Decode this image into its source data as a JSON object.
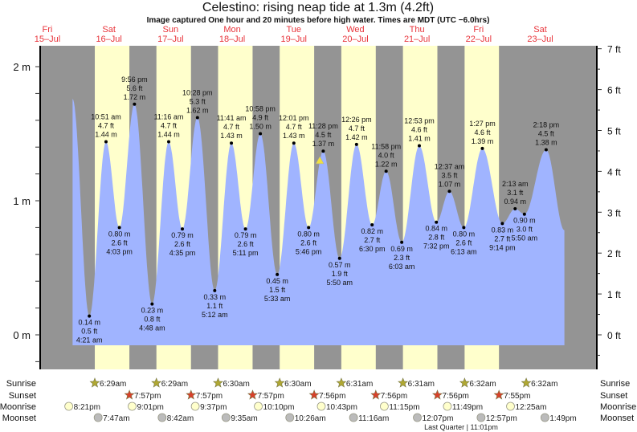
{
  "title": "Celestino: rising  neap tide at 1.3m (4.2ft)",
  "subtitle": "Image captured One hour and 20 minutes before high water. Times are MDT (UTC −6.0hrs)",
  "colors": {
    "night": "#949494",
    "day": "#ffffcc",
    "water": "#a0b4ff",
    "day_label": "#e8333a",
    "sunrise": "#b0a832",
    "sunset": "#d8402a",
    "moonrise": "#ffffcc",
    "moonset": "#bbbbbb",
    "marker": "#f0e040"
  },
  "chart_data": {
    "type": "area",
    "title": "Celestino: rising  neap tide at 1.3m (4.2ft)",
    "left_axis": {
      "unit": "m",
      "ticks": [
        "0 m",
        "1 m",
        "2 m"
      ],
      "range": [
        -0.08,
        2.2
      ]
    },
    "right_axis": {
      "unit": "ft",
      "ticks": [
        "0 ft",
        "1 ft",
        "2 ft",
        "3 ft",
        "4 ft",
        "5 ft",
        "6 ft",
        "7 ft"
      ]
    },
    "days": [
      {
        "dow": "Fri",
        "date": "15–Jul"
      },
      {
        "dow": "Sat",
        "date": "16–Jul"
      },
      {
        "dow": "Sun",
        "date": "17–Jul"
      },
      {
        "dow": "Mon",
        "date": "18–Jul"
      },
      {
        "dow": "Tue",
        "date": "19–Jul"
      },
      {
        "dow": "Wed",
        "date": "20–Jul"
      },
      {
        "dow": "Thu",
        "date": "21–Jul"
      },
      {
        "dow": "Fri",
        "date": "22–Jul"
      },
      {
        "dow": "Sat",
        "date": "23–Jul"
      }
    ],
    "curve_start": {
      "day": 0,
      "time": "9:50 pm",
      "m": 1.76
    },
    "curve_end": {
      "day": 8,
      "time": "9:25 pm",
      "m": 0.78
    },
    "extremes": [
      {
        "day": 1,
        "type": "low",
        "time": "4:21 am",
        "m": "0.14 m",
        "ft": "0.5 ft",
        "value": 0.14
      },
      {
        "day": 1,
        "type": "high",
        "time": "10:51 am",
        "m": "1.44 m",
        "ft": "4.7 ft",
        "value": 1.44
      },
      {
        "day": 1,
        "type": "low",
        "time": "4:03 pm",
        "m": "0.80 m",
        "ft": "2.6 ft",
        "value": 0.8
      },
      {
        "day": 1,
        "type": "high",
        "time": "9:56 pm",
        "m": "1.72 m",
        "ft": "5.6 ft",
        "value": 1.72
      },
      {
        "day": 2,
        "type": "low",
        "time": "4:48 am",
        "m": "0.23 m",
        "ft": "0.8 ft",
        "value": 0.23
      },
      {
        "day": 2,
        "type": "high",
        "time": "11:16 am",
        "m": "1.44 m",
        "ft": "4.7 ft",
        "value": 1.44
      },
      {
        "day": 2,
        "type": "low",
        "time": "4:35 pm",
        "m": "0.79 m",
        "ft": "2.6 ft",
        "value": 0.79
      },
      {
        "day": 2,
        "type": "high",
        "time": "10:28 pm",
        "m": "1.62 m",
        "ft": "5.3 ft",
        "value": 1.62
      },
      {
        "day": 3,
        "type": "low",
        "time": "5:12 am",
        "m": "0.33 m",
        "ft": "1.1 ft",
        "value": 0.33
      },
      {
        "day": 3,
        "type": "high",
        "time": "11:41 am",
        "m": "1.43 m",
        "ft": "4.7 ft",
        "value": 1.43
      },
      {
        "day": 3,
        "type": "low",
        "time": "5:11 pm",
        "m": "0.79 m",
        "ft": "2.6 ft",
        "value": 0.79
      },
      {
        "day": 3,
        "type": "high",
        "time": "10:58 pm",
        "m": "1.50 m",
        "ft": "4.9 ft",
        "value": 1.5
      },
      {
        "day": 4,
        "type": "low",
        "time": "5:33 am",
        "m": "0.45 m",
        "ft": "1.5 ft",
        "value": 0.45
      },
      {
        "day": 4,
        "type": "high",
        "time": "12:01 pm",
        "m": "1.43 m",
        "ft": "4.7 ft",
        "value": 1.43
      },
      {
        "day": 4,
        "type": "low",
        "time": "5:46 pm",
        "m": "0.80 m",
        "ft": "2.6 ft",
        "value": 0.8
      },
      {
        "day": 4,
        "type": "high",
        "time": "11:28 pm",
        "m": "1.37 m",
        "ft": "4.5 ft",
        "value": 1.37
      },
      {
        "day": 5,
        "type": "low",
        "time": "5:50 am",
        "m": "0.57 m",
        "ft": "1.9 ft",
        "value": 0.57
      },
      {
        "day": 5,
        "type": "high",
        "time": "12:26 pm",
        "m": "1.42 m",
        "ft": "4.7 ft",
        "value": 1.42
      },
      {
        "day": 5,
        "type": "low",
        "time": "6:30 pm",
        "m": "0.82 m",
        "ft": "2.7 ft",
        "value": 0.82
      },
      {
        "day": 5,
        "type": "high",
        "time": "11:58 pm",
        "m": "1.22 m",
        "ft": "4.0 ft",
        "value": 1.22
      },
      {
        "day": 6,
        "type": "low",
        "time": "6:03 am",
        "m": "0.69 m",
        "ft": "2.3 ft",
        "value": 0.69
      },
      {
        "day": 6,
        "type": "high",
        "time": "12:53 pm",
        "m": "1.41 m",
        "ft": "4.6 ft",
        "value": 1.41
      },
      {
        "day": 6,
        "type": "low",
        "time": "7:32 pm",
        "m": "0.84 m",
        "ft": "2.8 ft",
        "value": 0.84
      },
      {
        "day": 7,
        "type": "high",
        "time": "12:37 am",
        "m": "1.07 m",
        "ft": "3.5 ft",
        "value": 1.07
      },
      {
        "day": 7,
        "type": "low",
        "time": "6:13 am",
        "m": "0.80 m",
        "ft": "2.6 ft",
        "value": 0.8
      },
      {
        "day": 7,
        "type": "high",
        "time": "1:27 pm",
        "m": "1.39 m",
        "ft": "4.6 ft",
        "value": 1.39
      },
      {
        "day": 7,
        "type": "low",
        "time": "9:14 pm",
        "m": "0.83 m",
        "ft": "2.7 ft",
        "value": 0.83
      },
      {
        "day": 8,
        "type": "high",
        "time": "2:13 am",
        "m": "0.94 m",
        "ft": "3.1 ft",
        "value": 0.94
      },
      {
        "day": 8,
        "type": "low",
        "time": "5:50 am",
        "m": "0.90 m",
        "ft": "3.0 ft",
        "value": 0.9
      },
      {
        "day": 8,
        "type": "high",
        "time": "2:18 pm",
        "m": "1.38 m",
        "ft": "4.5 ft",
        "value": 1.38
      }
    ],
    "current": {
      "day": 4,
      "time": "10:08 pm",
      "m": 1.3
    }
  },
  "astro": {
    "row_labels": {
      "sunrise": "Sunrise",
      "sunset": "Sunset",
      "moonrise": "Moonrise",
      "moonset": "Moonset"
    },
    "sunrise": [
      {
        "day": 1,
        "time": "6:29am"
      },
      {
        "day": 2,
        "time": "6:29am"
      },
      {
        "day": 3,
        "time": "6:30am"
      },
      {
        "day": 4,
        "time": "6:30am"
      },
      {
        "day": 5,
        "time": "6:31am"
      },
      {
        "day": 6,
        "time": "6:31am"
      },
      {
        "day": 7,
        "time": "6:32am"
      },
      {
        "day": 8,
        "time": "6:32am"
      }
    ],
    "sunset": [
      {
        "day": 1,
        "time": "7:57pm"
      },
      {
        "day": 2,
        "time": "7:57pm"
      },
      {
        "day": 3,
        "time": "7:57pm"
      },
      {
        "day": 4,
        "time": "7:56pm"
      },
      {
        "day": 5,
        "time": "7:56pm"
      },
      {
        "day": 6,
        "time": "7:56pm"
      },
      {
        "day": 7,
        "time": "7:55pm"
      }
    ],
    "moonrise": [
      {
        "day": 0,
        "time": "8:21pm"
      },
      {
        "day": 1,
        "time": "9:01pm"
      },
      {
        "day": 2,
        "time": "9:37pm"
      },
      {
        "day": 3,
        "time": "10:10pm"
      },
      {
        "day": 4,
        "time": "10:43pm"
      },
      {
        "day": 5,
        "time": "11:15pm"
      },
      {
        "day": 6,
        "time": "11:49pm"
      },
      {
        "day": 8,
        "time": "12:25am"
      }
    ],
    "moonset": [
      {
        "day": 1,
        "time": "7:47am"
      },
      {
        "day": 2,
        "time": "8:42am"
      },
      {
        "day": 3,
        "time": "9:35am"
      },
      {
        "day": 4,
        "time": "10:26am"
      },
      {
        "day": 5,
        "time": "11:16am"
      },
      {
        "day": 6,
        "time": "12:07pm"
      },
      {
        "day": 7,
        "time": "12:57pm"
      },
      {
        "day": 8,
        "time": "1:49pm"
      }
    ],
    "moon_phase": "Last Quarter | 11:01pm"
  }
}
